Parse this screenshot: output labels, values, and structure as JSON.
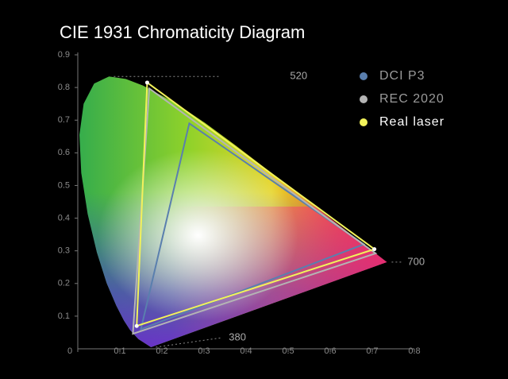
{
  "chart_data": {
    "type": "gamut",
    "title": "CIE 1931 Chromaticity Diagram",
    "xlim": [
      0,
      0.8
    ],
    "ylim": [
      0,
      0.9
    ],
    "xticks": [
      0,
      0.1,
      0.2,
      0.3,
      0.4,
      0.5,
      0.6,
      0.7,
      0.8
    ],
    "yticks": [
      0.1,
      0.2,
      0.3,
      0.4,
      0.5,
      0.6,
      0.7,
      0.8,
      0.9
    ],
    "locus": {
      "x": [
        0.1741,
        0.144,
        0.1241,
        0.1096,
        0.0913,
        0.0687,
        0.0454,
        0.0235,
        0.0082,
        0.0039,
        0.0139,
        0.0389,
        0.0743,
        0.1142,
        0.1547,
        0.2296,
        0.3016,
        0.3731,
        0.4441,
        0.5125,
        0.627,
        0.6915,
        0.7347
      ],
      "y": [
        0.005,
        0.0297,
        0.0578,
        0.0868,
        0.1327,
        0.2007,
        0.295,
        0.4127,
        0.5384,
        0.6548,
        0.7502,
        0.812,
        0.8338,
        0.8262,
        0.8059,
        0.7543,
        0.6923,
        0.6245,
        0.5547,
        0.4866,
        0.3725,
        0.3083,
        0.2653
      ]
    },
    "annotations": [
      {
        "text": "520",
        "x": 0.0743,
        "y": 0.8338
      },
      {
        "text": "700",
        "x": 0.7347,
        "y": 0.2653
      },
      {
        "text": "380",
        "x": 0.1741,
        "y": 0.005
      }
    ],
    "legend": "upper right",
    "series": [
      {
        "name": "DCI P3",
        "color": "#5a7fae",
        "x": [
          0.68,
          0.265,
          0.15
        ],
        "y": [
          0.32,
          0.69,
          0.06
        ]
      },
      {
        "name": "REC 2020",
        "color": "#b4b4b4",
        "x": [
          0.708,
          0.17,
          0.131
        ],
        "y": [
          0.292,
          0.797,
          0.046
        ]
      },
      {
        "name": "Real laser",
        "color": "#f2f25a",
        "x": [
          0.705,
          0.165,
          0.14
        ],
        "y": [
          0.305,
          0.815,
          0.07
        ],
        "marker": true
      }
    ]
  }
}
